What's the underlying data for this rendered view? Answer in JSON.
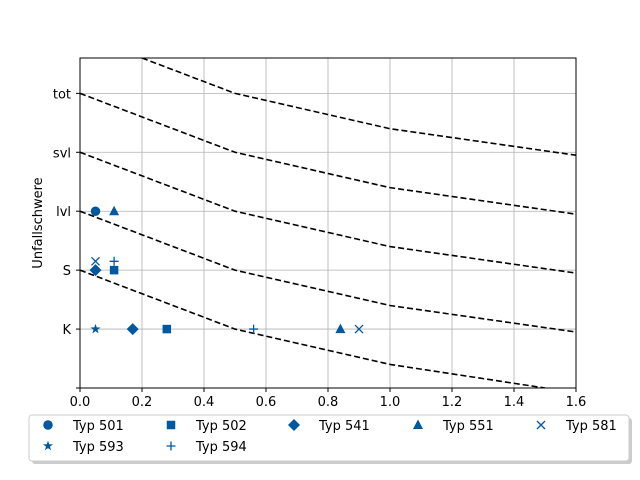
{
  "chart_data": {
    "type": "scatter",
    "title": "",
    "xlabel": "",
    "ylabel": "Unfallschwere",
    "xlim": [
      0.0,
      1.6
    ],
    "ylim": [
      -1,
      4.6
    ],
    "x_ticks": [
      0.0,
      0.2,
      0.4,
      0.6,
      0.8,
      1.0,
      1.2,
      1.4,
      1.6
    ],
    "x_tick_labels": [
      "0.0",
      "0.2",
      "0.4",
      "0.6",
      "0.8",
      "1.0",
      "1.2",
      "1.4",
      "1.6"
    ],
    "y_ticks": [
      -1,
      0,
      1,
      2,
      3,
      4
    ],
    "y_tick_labels": [
      "",
      "K",
      "S",
      "lvl",
      "svl",
      "tot"
    ],
    "grid": true,
    "legend_position": "bottom",
    "marker_color": "#00589e",
    "series": [
      {
        "name": "Typ 501",
        "marker": "circle",
        "points": [
          [
            0.05,
            2
          ]
        ]
      },
      {
        "name": "Typ 502",
        "marker": "square",
        "points": [
          [
            0.11,
            1
          ],
          [
            0.28,
            0
          ]
        ]
      },
      {
        "name": "Typ 541",
        "marker": "diamond",
        "points": [
          [
            0.05,
            1
          ],
          [
            0.17,
            0
          ]
        ]
      },
      {
        "name": "Typ 551",
        "marker": "triangle",
        "points": [
          [
            0.11,
            2
          ],
          [
            0.84,
            0
          ]
        ]
      },
      {
        "name": "Typ 581",
        "marker": "x",
        "points": [
          [
            0.05,
            1.15
          ],
          [
            0.9,
            0
          ]
        ]
      },
      {
        "name": "Typ 593",
        "marker": "star",
        "points": [
          [
            0.05,
            0
          ]
        ]
      },
      {
        "name": "Typ 594",
        "marker": "plus",
        "points": [
          [
            0.11,
            1.15
          ],
          [
            0.56,
            0
          ]
        ]
      }
    ],
    "reference_lines": {
      "style": "dashed",
      "color": "#000000",
      "lines": [
        [
          [
            0.0,
            1.0
          ],
          [
            0.5,
            0.0
          ],
          [
            1.0,
            -0.6
          ],
          [
            1.5,
            -1.0
          ]
        ],
        [
          [
            0.0,
            2.0
          ],
          [
            0.5,
            1.0
          ],
          [
            1.0,
            0.4
          ],
          [
            1.6,
            -0.05
          ]
        ],
        [
          [
            0.0,
            3.0
          ],
          [
            0.5,
            2.0
          ],
          [
            1.0,
            1.4
          ],
          [
            1.6,
            0.95
          ]
        ],
        [
          [
            0.0,
            4.0
          ],
          [
            0.5,
            3.0
          ],
          [
            1.0,
            2.4
          ],
          [
            1.6,
            1.95
          ]
        ],
        [
          [
            0.2,
            4.6
          ],
          [
            0.5,
            4.0
          ],
          [
            1.0,
            3.4
          ],
          [
            1.6,
            2.95
          ]
        ]
      ]
    }
  }
}
